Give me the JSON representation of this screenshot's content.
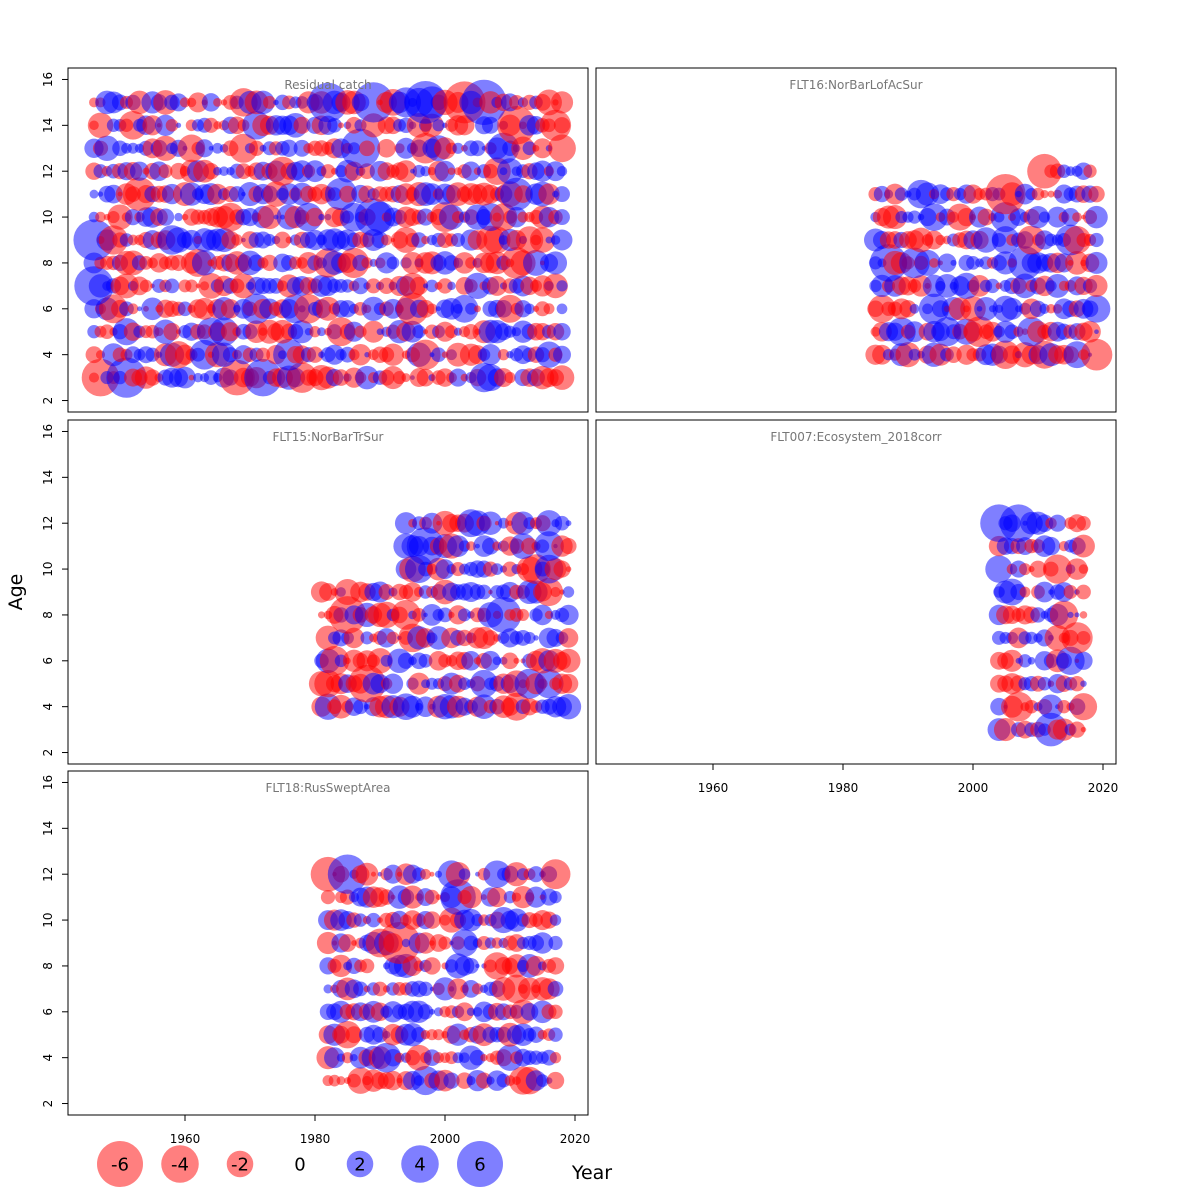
{
  "chart_data": {
    "type": "scatter",
    "subtype": "bubble",
    "xlabel": "Year",
    "ylabel": "Age",
    "xlim": [
      1942,
      2022
    ],
    "ylim": [
      1.5,
      16.5
    ],
    "x_ticks": [
      1960,
      1980,
      2000,
      2020
    ],
    "y_ticks": [
      2,
      4,
      6,
      8,
      10,
      12,
      14,
      16
    ],
    "colors": {
      "negative": "#ff0000",
      "positive": "#0000ff",
      "alpha": 0.5
    },
    "legend": {
      "placement": "bottom-left",
      "values": [
        -6,
        -4,
        -2,
        0,
        2,
        4,
        6
      ],
      "labels": [
        "-6",
        "-4",
        "-2",
        "0",
        "2",
        "4",
        "6"
      ]
    },
    "panels": [
      {
        "title": "Residual catch",
        "years": [
          1946,
          2018
        ],
        "ages": [
          3,
          15
        ],
        "seed": 11,
        "highlights": [
          {
            "year": 1946,
            "age": 9,
            "value": 4.8
          },
          {
            "year": 1946,
            "age": 7,
            "value": 4.4
          },
          {
            "year": 1947,
            "age": 3,
            "value": -4.0
          },
          {
            "year": 1951,
            "age": 3,
            "value": 4.6
          },
          {
            "year": 1982,
            "age": 15,
            "value": 4.4
          },
          {
            "year": 1989,
            "age": 15,
            "value": 4.6
          },
          {
            "year": 1997,
            "age": 15,
            "value": 5.2
          },
          {
            "year": 2003,
            "age": 15,
            "value": -5.0
          },
          {
            "year": 2006,
            "age": 15,
            "value": 5.8
          },
          {
            "year": 1987,
            "age": 13,
            "value": 4.4
          },
          {
            "year": 1989,
            "age": 10,
            "value": 4.0
          },
          {
            "year": 2011,
            "age": 14,
            "value": -4.2
          },
          {
            "year": 1968,
            "age": 3,
            "value": -3.6
          },
          {
            "year": 1972,
            "age": 3,
            "value": 4.0
          }
        ]
      },
      {
        "title": "FLT16:NorBarLofAcSur",
        "years": [
          1985,
          2019
        ],
        "ages": [
          4,
          11
        ],
        "extra_cells": [
          {
            "year_from": 2011,
            "year_to": 2019,
            "age": 12
          }
        ],
        "seed": 23,
        "highlights": [
          {
            "year": 2005,
            "age": 11,
            "value": -4.6
          },
          {
            "year": 1987,
            "age": 8,
            "value": 4.0
          },
          {
            "year": 2011,
            "age": 12,
            "value": -3.4
          }
        ]
      },
      {
        "title": "FLT15:NorBarTrSur",
        "years": [
          1981,
          2019
        ],
        "ages": [
          4,
          9
        ],
        "extra_cells": [
          {
            "year_from": 1994,
            "year_to": 2019,
            "age": 10
          },
          {
            "year_from": 1994,
            "year_to": 2019,
            "age": 11
          },
          {
            "year_from": 1994,
            "year_to": 2019,
            "age": 12
          }
        ],
        "seed": 37,
        "highlights": [
          {
            "year": 1985,
            "age": 8,
            "value": -4.0
          },
          {
            "year": 1988,
            "age": 5,
            "value": -4.0
          },
          {
            "year": 1997,
            "age": 11,
            "value": 4.0
          },
          {
            "year": 2009,
            "age": 8,
            "value": 3.6
          }
        ]
      },
      {
        "title": "FLT007:Ecosystem_2018corr",
        "years": [
          2004,
          2017
        ],
        "ages": [
          3,
          12
        ],
        "seed": 53,
        "highlights": [
          {
            "year": 2004,
            "age": 12,
            "value": 4.0
          },
          {
            "year": 2007,
            "age": 12,
            "value": 4.0
          },
          {
            "year": 2012,
            "age": 3,
            "value": 3.2
          }
        ]
      },
      {
        "title": "FLT18:RusSweptArea",
        "years": [
          1982,
          2017
        ],
        "ages": [
          3,
          12
        ],
        "seed": 71,
        "highlights": [
          {
            "year": 1993,
            "age": 9,
            "value": -5.0
          },
          {
            "year": 1985,
            "age": 12,
            "value": 4.4
          },
          {
            "year": 1982,
            "age": 12,
            "value": -3.4
          },
          {
            "year": 2002,
            "age": 11,
            "value": 3.6
          }
        ]
      }
    ]
  }
}
